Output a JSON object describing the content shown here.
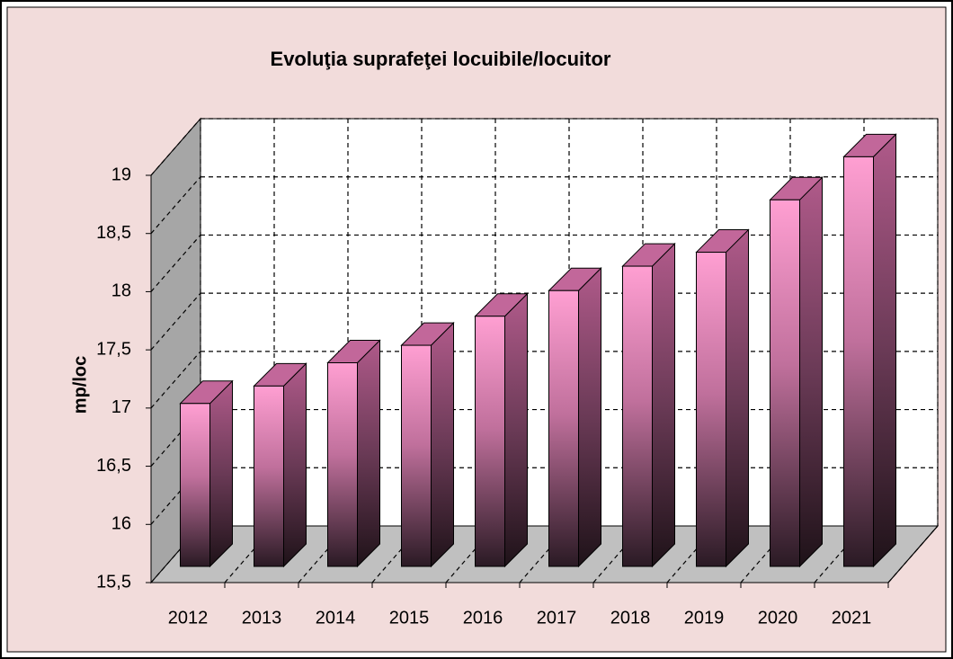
{
  "chart_data": {
    "type": "bar3d",
    "title": "Evoluţia suprafeţei locuibile/locuitor",
    "ylabel": "mp/loc",
    "categories": [
      "2012",
      "2013",
      "2014",
      "2015",
      "2016",
      "2017",
      "2018",
      "2019",
      "2020",
      "2021"
    ],
    "values": [
      16.9,
      17.05,
      17.25,
      17.4,
      17.65,
      17.87,
      18.08,
      18.2,
      18.65,
      19.02
    ],
    "color": "#ff99cc",
    "ylim": [
      15.5,
      19
    ],
    "yticks": [
      {
        "value": 15.5,
        "label": "15,5"
      },
      16,
      {
        "value": 16.5,
        "label": "16,5"
      },
      17,
      {
        "value": 17.5,
        "label": "17,5"
      },
      18,
      {
        "value": 18.5,
        "label": "18,5"
      },
      19
    ],
    "grid": true
  }
}
